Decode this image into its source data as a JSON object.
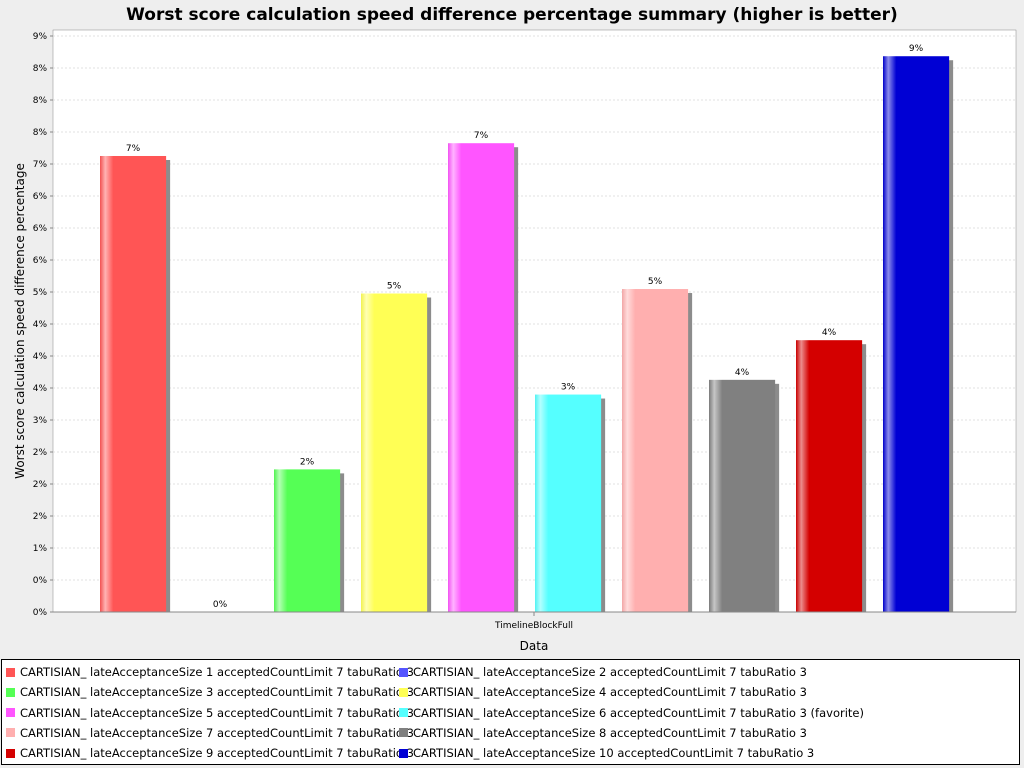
{
  "chart_data": {
    "type": "bar",
    "title": "Worst score calculation speed difference percentage summary (higher is better)",
    "xlabel": "Data",
    "ylabel": "Worst score calculation speed difference percentage",
    "categories": [
      "TimelineBlockFull"
    ],
    "ylim": [
      0,
      9.1
    ],
    "y_tick_labels": [
      "0%",
      "0%",
      "1%",
      "2%",
      "2%",
      "2%",
      "3%",
      "4%",
      "4%",
      "4%",
      "5%",
      "6%",
      "6%",
      "6%",
      "7%",
      "8%",
      "8%",
      "8%",
      "9%"
    ],
    "grid": true,
    "legend_position": "bottom",
    "series": [
      {
        "name": "CARTISIAN_ lateAcceptanceSize 1 acceptedCountLimit 7 tabuRatio 3",
        "value": 7.13,
        "label": "7%",
        "color": "#ff5555"
      },
      {
        "name": "CARTISIAN_ lateAcceptanceSize 2 acceptedCountLimit 7 tabuRatio 3",
        "value": 0.0,
        "label": "0%",
        "color": "#5555ff"
      },
      {
        "name": "CARTISIAN_ lateAcceptanceSize 3 acceptedCountLimit 7 tabuRatio 3",
        "value": 2.23,
        "label": "2%",
        "color": "#55ff55"
      },
      {
        "name": "CARTISIAN_ lateAcceptanceSize 4 acceptedCountLimit 7 tabuRatio 3",
        "value": 4.98,
        "label": "5%",
        "color": "#ffff55"
      },
      {
        "name": "CARTISIAN_ lateAcceptanceSize 5 acceptedCountLimit 7 tabuRatio 3",
        "value": 7.33,
        "label": "7%",
        "color": "#ff55ff"
      },
      {
        "name": "CARTISIAN_ lateAcceptanceSize 6 acceptedCountLimit 7 tabuRatio 3 (favorite)",
        "value": 3.4,
        "label": "3%",
        "color": "#55ffff"
      },
      {
        "name": "CARTISIAN_ lateAcceptanceSize 7 acceptedCountLimit 7 tabuRatio 3",
        "value": 5.05,
        "label": "5%",
        "color": "#ffafaf"
      },
      {
        "name": "CARTISIAN_ lateAcceptanceSize 8 acceptedCountLimit 7 tabuRatio 3",
        "value": 3.63,
        "label": "4%",
        "color": "#808080"
      },
      {
        "name": "CARTISIAN_ lateAcceptanceSize 9 acceptedCountLimit 7 tabuRatio 3",
        "value": 4.25,
        "label": "4%",
        "color": "#d40000"
      },
      {
        "name": "CARTISIAN_ lateAcceptanceSize 10 acceptedCountLimit 7 tabuRatio 3",
        "value": 8.69,
        "label": "9%",
        "color": "#0000d4"
      }
    ]
  }
}
